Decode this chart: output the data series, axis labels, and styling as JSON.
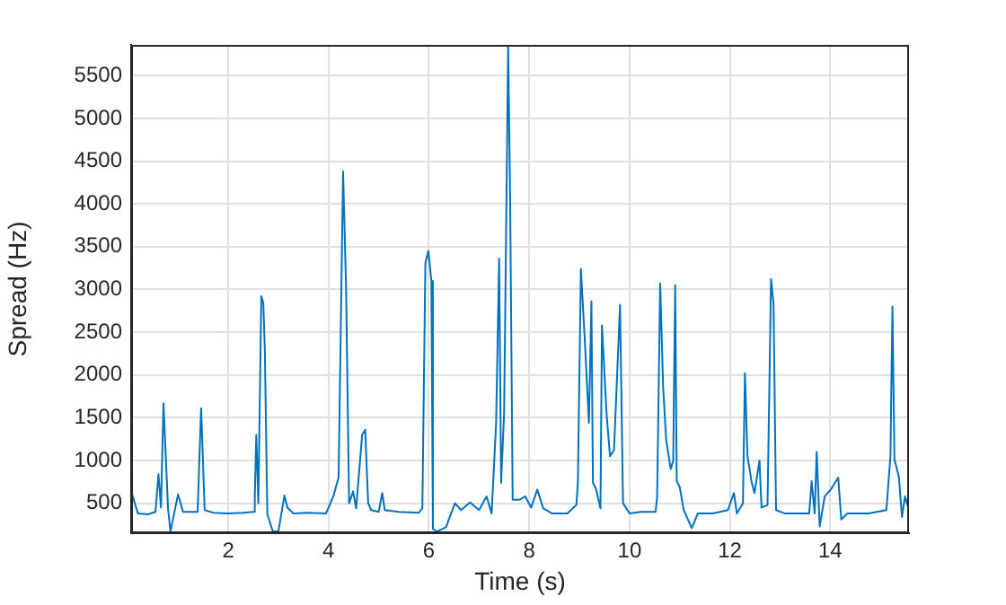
{
  "chart_data": {
    "type": "line",
    "xlabel": "Time (s)",
    "ylabel": "Spread (Hz)",
    "xlim": [
      0.065,
      15.57
    ],
    "ylim": [
      150,
      5860
    ],
    "xticks": [
      2,
      4,
      6,
      8,
      10,
      12,
      14
    ],
    "yticks": [
      500,
      1000,
      1500,
      2000,
      2500,
      3000,
      3500,
      4000,
      4500,
      5000,
      5500
    ],
    "grid": true,
    "legend": false,
    "marker": "none",
    "line_style": "solid",
    "series": [
      {
        "color": "#0072bd",
        "x": [
          0.077,
          0.2,
          0.4,
          0.55,
          0.61,
          0.66,
          0.71,
          0.8,
          0.85,
          1.0,
          1.1,
          1.39,
          1.46,
          1.53,
          1.7,
          2.0,
          2.3,
          2.5,
          2.53,
          2.56,
          2.6,
          2.66,
          2.7,
          2.73,
          2.78,
          2.89,
          3.0,
          3.12,
          3.18,
          3.3,
          3.6,
          3.95,
          4.1,
          4.2,
          4.29,
          4.35,
          4.41,
          4.49,
          4.55,
          4.67,
          4.73,
          4.79,
          4.85,
          5.0,
          5.07,
          5.12,
          5.4,
          5.8,
          5.87,
          5.93,
          5.99,
          6.05,
          6.08,
          6.16,
          6.34,
          6.52,
          6.64,
          6.82,
          7.0,
          7.15,
          7.25,
          7.34,
          7.4,
          7.44,
          7.5,
          7.58,
          7.62,
          7.67,
          7.8,
          7.92,
          8.04,
          8.16,
          8.28,
          8.46,
          8.76,
          8.94,
          8.97,
          9.03,
          9.11,
          9.19,
          9.24,
          9.27,
          9.33,
          9.42,
          9.45,
          9.48,
          9.54,
          9.61,
          9.69,
          9.81,
          9.87,
          10.0,
          10.23,
          10.52,
          10.55,
          10.61,
          10.67,
          10.73,
          10.82,
          10.87,
          10.91,
          10.94,
          11.0,
          11.08,
          11.24,
          11.36,
          11.66,
          11.96,
          12.08,
          12.14,
          12.26,
          12.3,
          12.35,
          12.43,
          12.49,
          12.59,
          12.63,
          12.75,
          12.82,
          12.87,
          12.92,
          13.1,
          13.58,
          13.63,
          13.69,
          13.73,
          13.79,
          13.89,
          14.01,
          14.16,
          14.22,
          14.34,
          14.76,
          15.12,
          15.2,
          15.24,
          15.28,
          15.33,
          15.37,
          15.43,
          15.49,
          15.56
        ],
        "values": [
          620,
          380,
          370,
          400,
          840,
          450,
          1670,
          440,
          170,
          605,
          400,
          400,
          1610,
          420,
          390,
          380,
          390,
          400,
          600,
          1300,
          500,
          2920,
          2840,
          2280,
          370,
          170,
          170,
          590,
          450,
          380,
          390,
          380,
          590,
          800,
          4380,
          3000,
          500,
          640,
          440,
          1300,
          1360,
          500,
          420,
          400,
          620,
          420,
          400,
          390,
          440,
          3310,
          3450,
          3100,
          200,
          170,
          220,
          500,
          420,
          510,
          420,
          580,
          380,
          1430,
          3360,
          740,
          1560,
          5860,
          4040,
          540,
          540,
          580,
          450,
          660,
          440,
          380,
          380,
          480,
          740,
          3240,
          2380,
          1440,
          2860,
          740,
          670,
          440,
          2580,
          2580,
          1560,
          1050,
          1120,
          2820,
          500,
          380,
          400,
          400,
          580,
          3070,
          1850,
          1240,
          900,
          1000,
          3050,
          760,
          690,
          420,
          210,
          380,
          380,
          420,
          620,
          380,
          500,
          2020,
          1050,
          760,
          620,
          1000,
          450,
          480,
          3120,
          2840,
          420,
          380,
          380,
          760,
          380,
          1100,
          230,
          580,
          660,
          800,
          310,
          380,
          380,
          420,
          1050,
          2800,
          1010,
          900,
          800,
          340,
          580,
          440
        ]
      }
    ]
  }
}
